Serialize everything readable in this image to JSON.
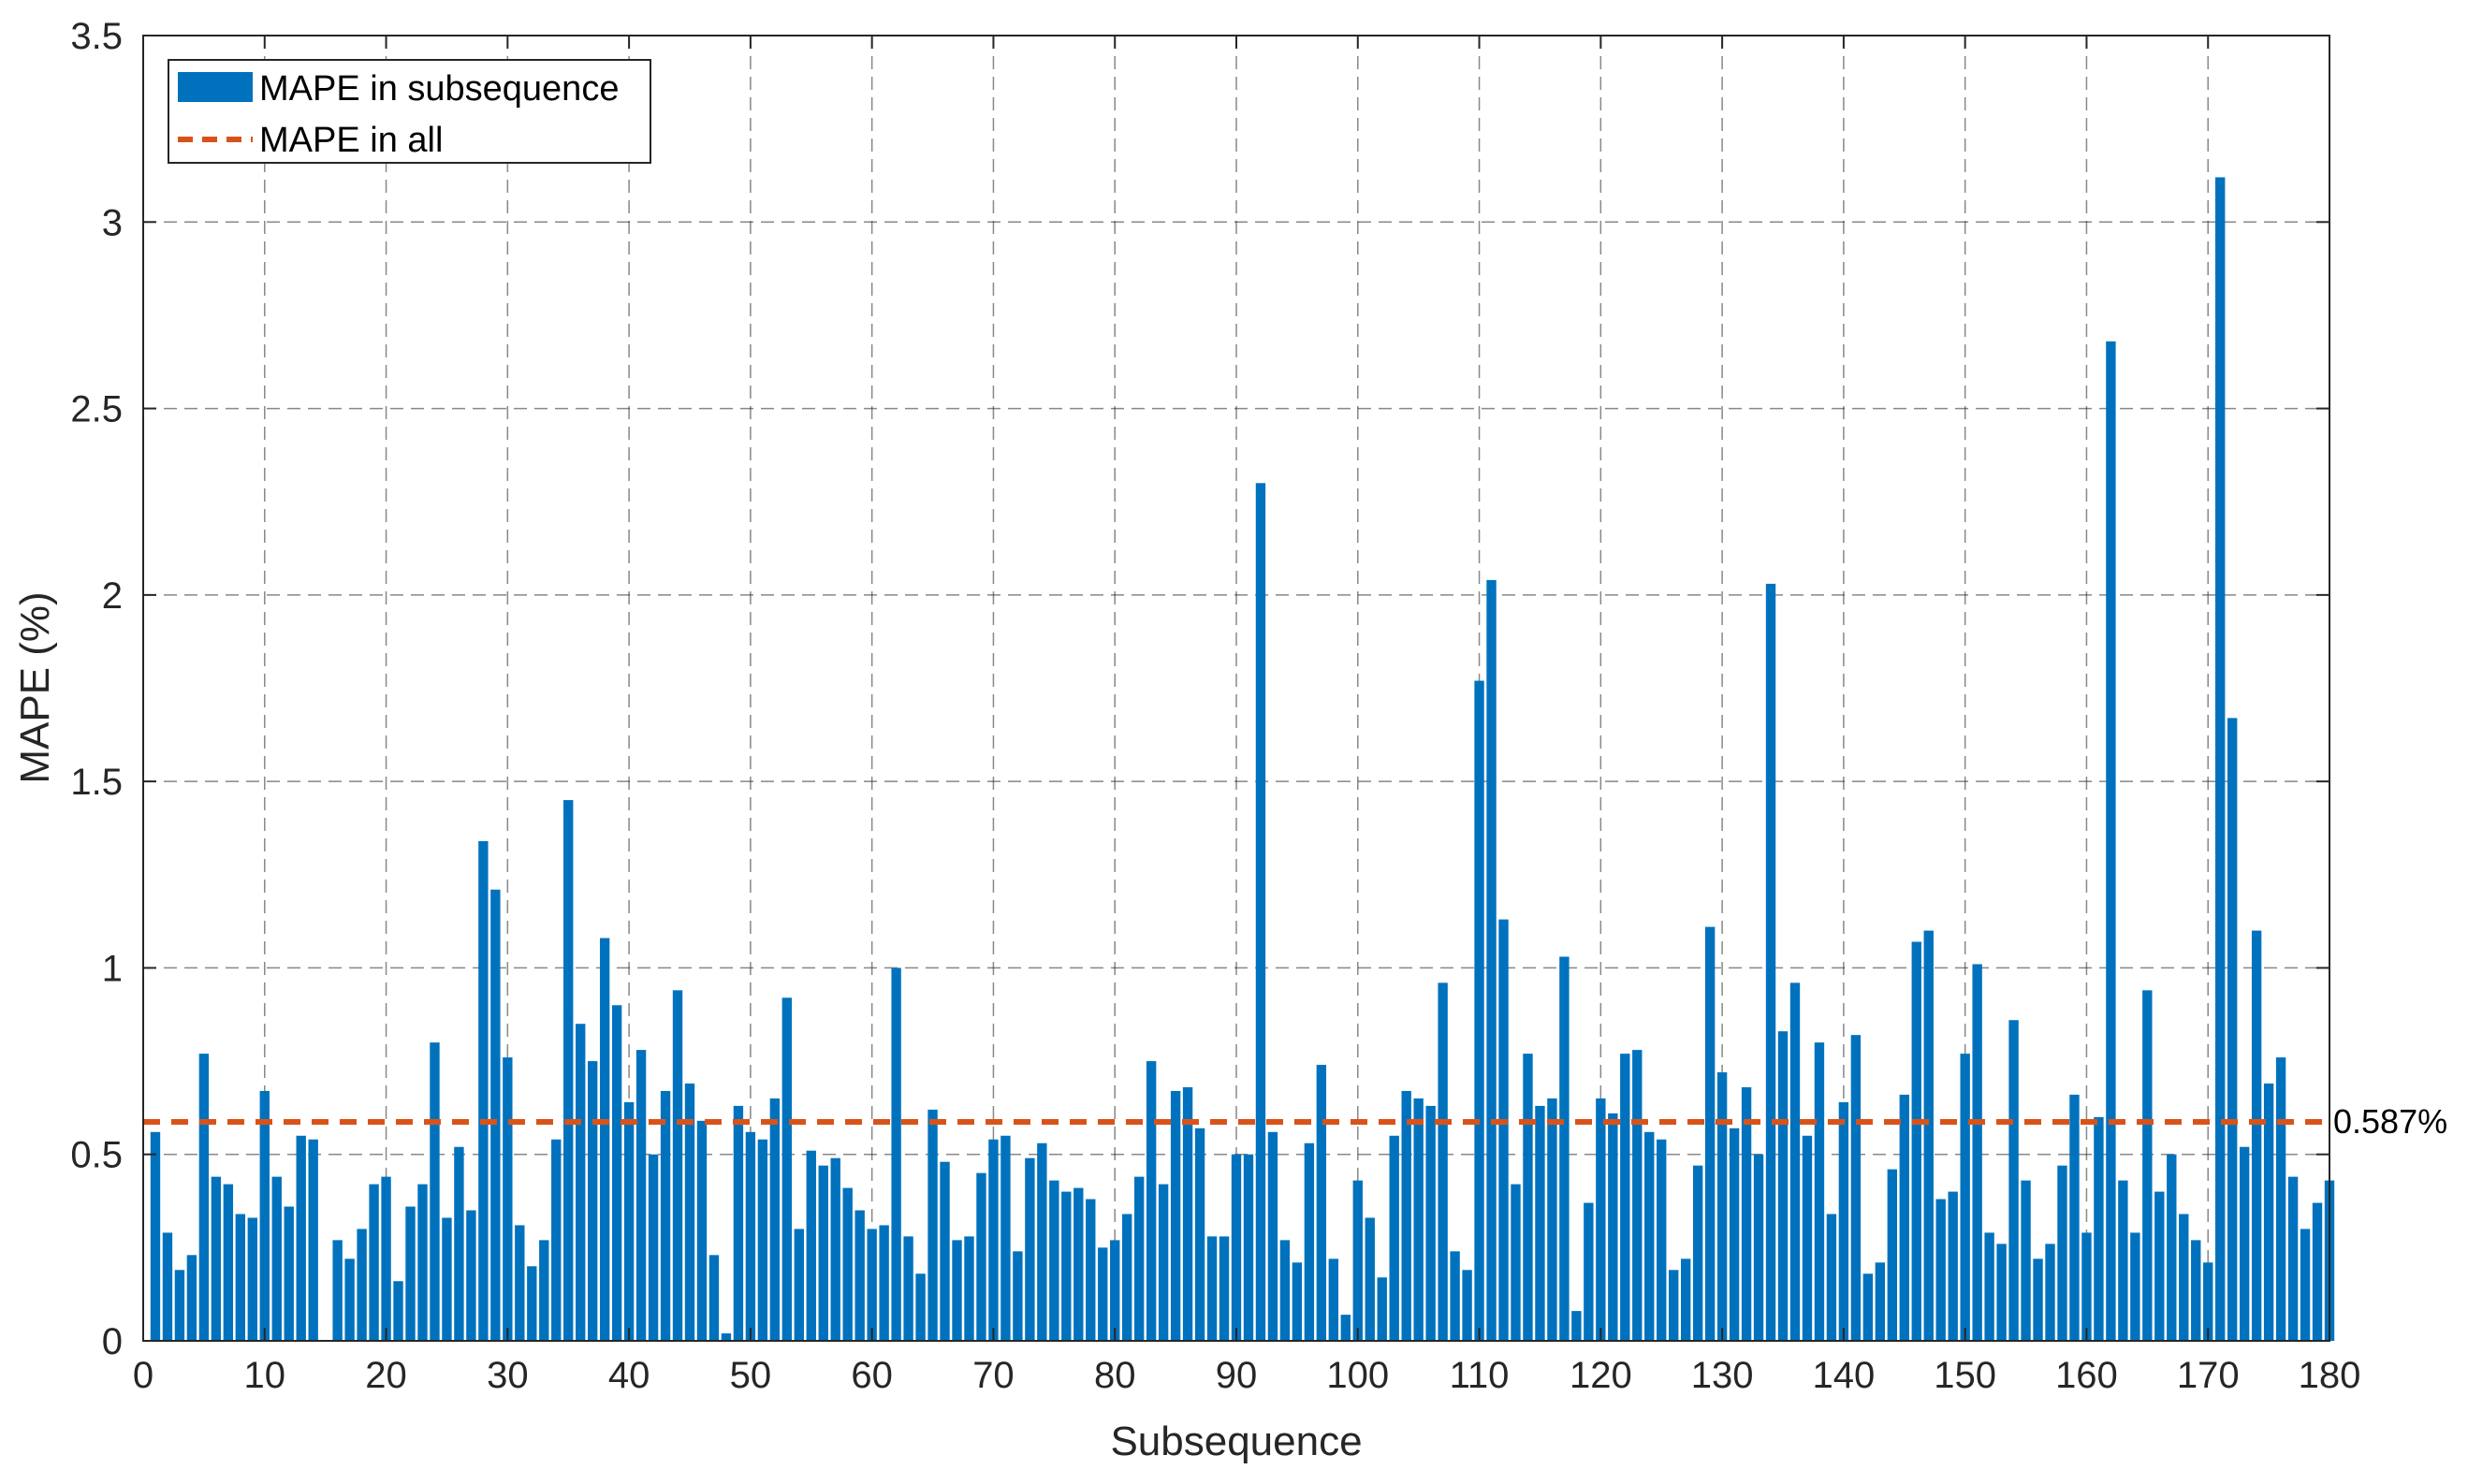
{
  "chart_data": {
    "type": "bar",
    "xlabel": "Subsequence",
    "ylabel": "MAPE (%)",
    "xlim": [
      0,
      180
    ],
    "ylim": [
      0,
      3.5
    ],
    "x_ticks": [
      0,
      10,
      20,
      30,
      40,
      50,
      60,
      70,
      80,
      90,
      100,
      110,
      120,
      130,
      140,
      150,
      160,
      170,
      180
    ],
    "y_ticks": [
      0,
      0.5,
      1,
      1.5,
      2,
      2.5,
      3,
      3.5
    ],
    "y_tick_labels": [
      "0",
      "0.5",
      "1",
      "1.5",
      "2",
      "2.5",
      "3",
      "3.5"
    ],
    "grid": true,
    "grid_style": "dashed",
    "legend_position": "top-left",
    "series": [
      {
        "name": "MAPE in subsequence",
        "kind": "bar",
        "color": "#0072BD",
        "x": [
          1,
          2,
          3,
          4,
          5,
          6,
          7,
          8,
          9,
          10,
          11,
          12,
          13,
          14,
          15,
          16,
          17,
          18,
          19,
          20,
          21,
          22,
          23,
          24,
          25,
          26,
          27,
          28,
          29,
          30,
          31,
          32,
          33,
          34,
          35,
          36,
          37,
          38,
          39,
          40,
          41,
          42,
          43,
          44,
          45,
          46,
          47,
          48,
          49,
          50,
          51,
          52,
          53,
          54,
          55,
          56,
          57,
          58,
          59,
          60,
          61,
          62,
          63,
          64,
          65,
          66,
          67,
          68,
          69,
          70,
          71,
          72,
          73,
          74,
          75,
          76,
          77,
          78,
          79,
          80,
          81,
          82,
          83,
          84,
          85,
          86,
          87,
          88,
          89,
          90,
          91,
          92,
          93,
          94,
          95,
          96,
          97,
          98,
          99,
          100,
          101,
          102,
          103,
          104,
          105,
          106,
          107,
          108,
          109,
          110,
          111,
          112,
          113,
          114,
          115,
          116,
          117,
          118,
          119,
          120,
          121,
          122,
          123,
          124,
          125,
          126,
          127,
          128,
          129,
          130,
          131,
          132,
          133,
          134,
          135,
          136,
          137,
          138,
          139,
          140,
          141,
          142,
          143,
          144,
          145,
          146,
          147,
          148,
          149,
          150,
          151,
          152,
          153,
          154,
          155,
          156,
          157,
          158,
          159,
          160,
          161,
          162,
          163,
          164,
          165,
          166,
          167,
          168,
          169,
          170,
          171,
          172,
          173,
          174,
          175,
          176,
          177,
          178,
          179,
          180
        ],
        "values": [
          0.56,
          0.29,
          0.19,
          0.23,
          0.77,
          0.44,
          0.42,
          0.34,
          0.33,
          0.67,
          0.44,
          0.36,
          0.55,
          0.54,
          0,
          0.27,
          0.22,
          0.3,
          0.42,
          0.44,
          0.16,
          0.36,
          0.42,
          0.8,
          0.33,
          0.52,
          0.35,
          1.34,
          1.21,
          0.76,
          0.31,
          0.2,
          0.27,
          0.54,
          1.45,
          0.85,
          0.75,
          1.08,
          0.9,
          0.64,
          0.78,
          0.5,
          0.67,
          0.94,
          0.69,
          0.59,
          0.23,
          0.02,
          0.63,
          0.56,
          0.54,
          0.65,
          0.92,
          0.3,
          0.51,
          0.47,
          0.49,
          0.41,
          0.35,
          0.3,
          0.31,
          1.0,
          0.28,
          0.18,
          0.62,
          0.48,
          0.27,
          0.28,
          0.45,
          0.54,
          0.55,
          0.24,
          0.49,
          0.53,
          0.43,
          0.4,
          0.41,
          0.38,
          0.25,
          0.27,
          0.34,
          0.44,
          0.75,
          0.42,
          0.67,
          0.68,
          0.57,
          0.28,
          0.28,
          0.5,
          0.5,
          2.3,
          0.56,
          0.27,
          0.21,
          0.53,
          0.74,
          0.22,
          0.07,
          0.43,
          0.33,
          0.17,
          0.55,
          0.67,
          0.65,
          0.63,
          0.96,
          0.24,
          0.19,
          1.77,
          2.04,
          1.13,
          0.42,
          0.77,
          0.63,
          0.65,
          1.03,
          0.08,
          0.37,
          0.65,
          0.61,
          0.77,
          0.78,
          0.56,
          0.54,
          0.19,
          0.22,
          0.47,
          1.11,
          0.72,
          0.57,
          0.68,
          0.5,
          2.03,
          0.83,
          0.96,
          0.55,
          0.8,
          0.34,
          0.64,
          0.82,
          0.18,
          0.21,
          0.46,
          0.66,
          1.07,
          1.1,
          0.38,
          0.4,
          0.77,
          1.01,
          0.29,
          0.26,
          0.86,
          0.43,
          0.22,
          0.26,
          0.47,
          0.66,
          0.29,
          0.6,
          2.68,
          0.43,
          0.29,
          0.94,
          0.4,
          0.5,
          0.34,
          0.27,
          0.21,
          3.12,
          1.67,
          0.52,
          1.1,
          0.69,
          0.76,
          0.44,
          0.3,
          0.37,
          0.43
        ]
      },
      {
        "name": "MAPE in all",
        "kind": "reference-line",
        "color": "#D95319",
        "value": 0.587,
        "label": "0.587%"
      }
    ]
  }
}
